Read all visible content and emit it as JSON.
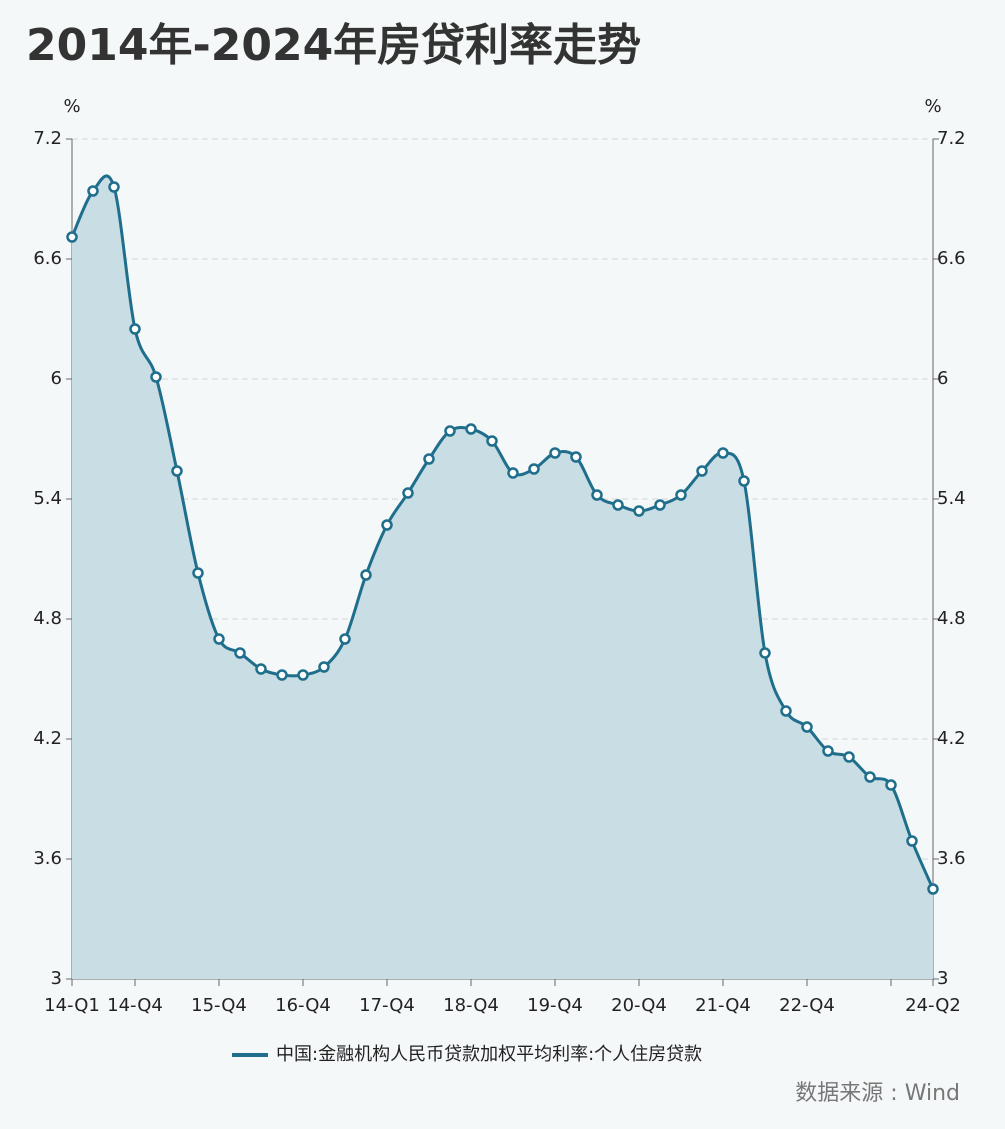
{
  "chart_data": {
    "type": "line",
    "title": "2014年-2024年房贷利率走势",
    "y_label": "%",
    "y2_label": "%",
    "categories": [
      "14-Q1",
      null,
      null,
      "14-Q4",
      null,
      null,
      null,
      "15-Q4",
      null,
      null,
      null,
      "16-Q4",
      null,
      null,
      null,
      "17-Q4",
      null,
      null,
      null,
      "18-Q4",
      null,
      null,
      null,
      "19-Q4",
      null,
      null,
      null,
      "20-Q4",
      null,
      null,
      null,
      "21-Q4",
      null,
      null,
      null,
      "22-Q4",
      null,
      null,
      null,
      null,
      null,
      "24-Q2"
    ],
    "series": [
      {
        "name": "中国:金融机构人民币贷款加权平均利率:个人住房贷款",
        "color": "#1f6e8c",
        "values": [
          6.71,
          6.94,
          6.96,
          6.25,
          6.01,
          5.54,
          5.03,
          4.7,
          4.63,
          4.55,
          4.52,
          4.52,
          4.56,
          4.7,
          5.02,
          5.27,
          5.43,
          5.6,
          5.74,
          5.75,
          5.69,
          5.53,
          5.55,
          5.63,
          5.61,
          5.42,
          5.37,
          5.34,
          5.37,
          5.42,
          5.54,
          5.63,
          5.49,
          4.63,
          4.34,
          4.26,
          4.14,
          4.11,
          4.01,
          3.97,
          3.69,
          3.45
        ]
      }
    ],
    "ylim": [
      3,
      7.2
    ],
    "yticks": [
      7.2,
      6.6,
      6,
      5.4,
      4.8,
      4.2,
      3.6,
      3
    ],
    "y2lim": [
      3,
      7.2
    ],
    "y2ticks": [
      7.2,
      6.6,
      6,
      5.4,
      4.8,
      4.2,
      3.6,
      3
    ],
    "grid": true,
    "area_color": "#c9dde4",
    "legend": "bottom",
    "source": "数据来源 : Wind"
  }
}
